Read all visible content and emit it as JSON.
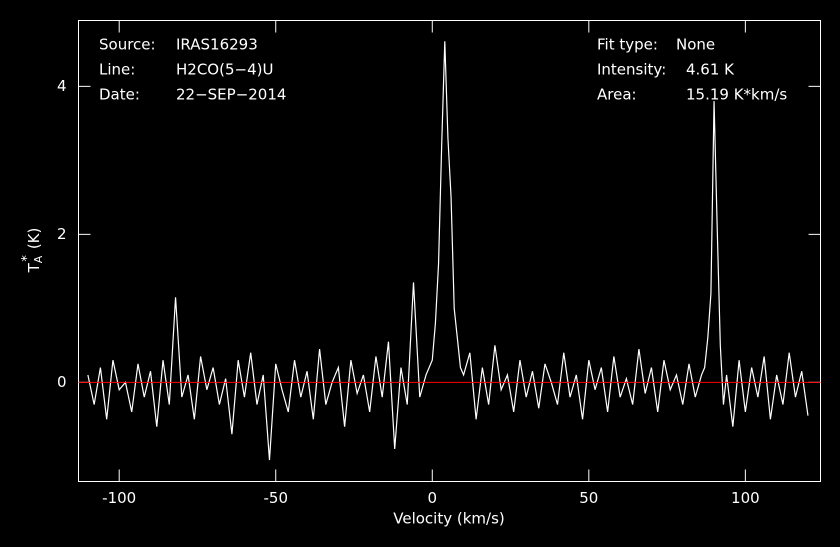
{
  "chart_data": {
    "type": "line",
    "xlabel": "Velocity (km/s)",
    "ylabel": {
      "base": "T",
      "sub": "A",
      "sup": "*",
      "unit": "(K)"
    },
    "xlim": [
      -113,
      124
    ],
    "ylim": [
      -1.34,
      4.89
    ],
    "xticks": [
      -100,
      -50,
      0,
      50,
      100
    ],
    "yticks": [
      0,
      2,
      4
    ],
    "hline": {
      "value": 0,
      "color": "#ff0000"
    },
    "annotations_left": [
      {
        "label": "Source:",
        "text": "IRAS16293"
      },
      {
        "label": "Line:",
        "text": "H2CO(5−4)U"
      },
      {
        "label": "Date:",
        "text": "22−SEP−2014"
      }
    ],
    "annotations_right": [
      {
        "label": "Fit type:",
        "text": "None"
      },
      {
        "label": "Intensity:",
        "text": "4.61 K"
      },
      {
        "label": "Area:",
        "text": "15.19 K*km/s"
      }
    ],
    "series": [
      {
        "name": "H2CO(5−4)U",
        "color": "#ffffff",
        "x": [
          -110,
          -108,
          -106,
          -104,
          -102,
          -100,
          -98,
          -96,
          -94,
          -92,
          -90,
          -88,
          -86,
          -84,
          -82,
          -80,
          -78,
          -76,
          -74,
          -72,
          -70,
          -68,
          -66,
          -64,
          -62,
          -60,
          -58,
          -56,
          -54,
          -52,
          -50,
          -48,
          -46,
          -44,
          -42,
          -40,
          -38,
          -36,
          -34,
          -32,
          -30,
          -28,
          -26,
          -24,
          -22,
          -20,
          -18,
          -16,
          -14,
          -12,
          -10,
          -8,
          -6,
          -4,
          -2,
          0,
          1,
          2,
          3,
          4,
          5,
          6,
          7,
          8,
          9,
          10,
          12,
          14,
          16,
          18,
          20,
          22,
          24,
          26,
          28,
          30,
          32,
          34,
          36,
          38,
          40,
          42,
          44,
          46,
          48,
          50,
          52,
          54,
          56,
          58,
          60,
          62,
          64,
          66,
          68,
          70,
          72,
          74,
          76,
          78,
          80,
          82,
          84,
          86,
          87,
          88,
          89,
          90,
          91,
          92,
          93,
          94,
          96,
          98,
          100,
          102,
          104,
          106,
          108,
          110,
          112,
          114,
          116,
          118,
          120
        ],
        "values": [
          0.1,
          -0.3,
          0.2,
          -0.5,
          0.3,
          -0.1,
          0.0,
          -0.4,
          0.25,
          -0.2,
          0.15,
          -0.6,
          0.3,
          -0.3,
          1.15,
          -0.2,
          0.1,
          -0.5,
          0.35,
          -0.1,
          0.2,
          -0.3,
          0.05,
          -0.7,
          0.3,
          -0.2,
          0.4,
          -0.3,
          0.1,
          -1.05,
          0.25,
          -0.1,
          -0.4,
          0.3,
          -0.2,
          0.15,
          -0.5,
          0.45,
          -0.3,
          0.0,
          0.2,
          -0.6,
          0.3,
          -0.15,
          0.1,
          -0.4,
          0.35,
          -0.2,
          0.55,
          -0.9,
          0.2,
          -0.3,
          1.35,
          -0.2,
          0.1,
          0.3,
          0.8,
          1.6,
          3.2,
          4.61,
          3.3,
          2.5,
          1.0,
          0.6,
          0.2,
          0.1,
          0.4,
          -0.5,
          0.2,
          -0.3,
          0.5,
          -0.1,
          0.1,
          -0.4,
          0.3,
          -0.2,
          0.15,
          -0.35,
          0.25,
          0.0,
          -0.3,
          0.4,
          -0.2,
          0.1,
          -0.5,
          0.3,
          -0.1,
          0.2,
          -0.4,
          0.35,
          -0.2,
          0.05,
          -0.3,
          0.45,
          -0.15,
          0.2,
          -0.4,
          0.3,
          -0.1,
          0.1,
          -0.3,
          0.25,
          -0.2,
          0.1,
          0.2,
          0.6,
          1.2,
          3.8,
          2.1,
          0.5,
          -0.3,
          0.1,
          -0.6,
          0.3,
          -0.4,
          0.2,
          -0.2,
          0.35,
          -0.5,
          0.1,
          -0.3,
          0.4,
          -0.2,
          0.15,
          -0.45
        ]
      }
    ]
  }
}
